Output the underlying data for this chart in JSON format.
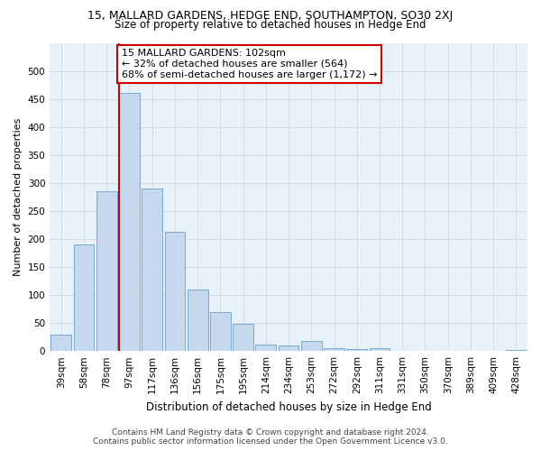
{
  "title": "15, MALLARD GARDENS, HEDGE END, SOUTHAMPTON, SO30 2XJ",
  "subtitle": "Size of property relative to detached houses in Hedge End",
  "xlabel": "Distribution of detached houses by size in Hedge End",
  "ylabel": "Number of detached properties",
  "annotation_line1": "15 MALLARD GARDENS: 102sqm",
  "annotation_line2": "← 32% of detached houses are smaller (564)",
  "annotation_line3": "68% of semi-detached houses are larger (1,172) →",
  "categories": [
    "39sqm",
    "58sqm",
    "78sqm",
    "97sqm",
    "117sqm",
    "136sqm",
    "156sqm",
    "175sqm",
    "195sqm",
    "214sqm",
    "234sqm",
    "253sqm",
    "272sqm",
    "292sqm",
    "311sqm",
    "331sqm",
    "350sqm",
    "370sqm",
    "389sqm",
    "409sqm",
    "428sqm"
  ],
  "values": [
    30,
    190,
    285,
    460,
    290,
    212,
    110,
    70,
    48,
    12,
    10,
    18,
    5,
    3,
    5,
    0,
    0,
    0,
    0,
    0,
    2
  ],
  "bar_color": "#c5d8ee",
  "bar_edge_color": "#7aaad0",
  "vline_color": "#cc0000",
  "vline_x": 3,
  "annotation_box_color": "#cc0000",
  "ylim": [
    0,
    550
  ],
  "yticks": [
    0,
    50,
    100,
    150,
    200,
    250,
    300,
    350,
    400,
    450,
    500
  ],
  "footer_line1": "Contains HM Land Registry data © Crown copyright and database right 2024.",
  "footer_line2": "Contains public sector information licensed under the Open Government Licence v3.0.",
  "background_color": "#ffffff",
  "grid_color": "#c8d8e8",
  "title_fontsize": 9,
  "subtitle_fontsize": 8.5,
  "axis_label_fontsize": 8,
  "tick_fontsize": 7.5,
  "footer_fontsize": 6.5
}
